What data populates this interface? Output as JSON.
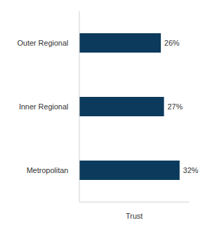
{
  "chart_data": {
    "type": "bar",
    "orientation": "horizontal",
    "categories": [
      "Outer Regional",
      "Inner Regional",
      "Metropolitan"
    ],
    "values": [
      26,
      27,
      32
    ],
    "value_labels": [
      "26%",
      "27%",
      "32%"
    ],
    "data_labels": true,
    "color": "#0b3a5c",
    "xlabel": "Trust",
    "xlim": [
      0,
      35
    ],
    "xticks": [],
    "tick_labels": "y",
    "grid": false
  }
}
